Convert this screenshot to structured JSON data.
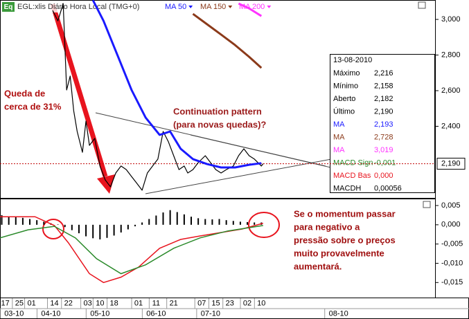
{
  "header": {
    "icon": "Eq",
    "title": "EGL:xlis Diário Hora Local (TMG+0)"
  },
  "info_box": {
    "title": "13-08-2010",
    "rows": [
      {
        "label": "Máximo",
        "value": "2,216",
        "color": "#000000"
      },
      {
        "label": "Mínimo",
        "value": "2,158",
        "color": "#000000"
      },
      {
        "label": "Aberto",
        "value": "2,182",
        "color": "#000000"
      },
      {
        "label": "Último",
        "value": "2,190",
        "color": "#000000"
      },
      {
        "label": "MA",
        "value": "2,193",
        "color": "#1a1aff"
      },
      {
        "label": "MA",
        "value": "2,728",
        "color": "#8b3a1a"
      },
      {
        "label": "MA",
        "value": "3,019",
        "color": "#ff33ff"
      },
      {
        "label": "MACD Sign",
        "value": "-0,001",
        "color": "#2a8a2a"
      },
      {
        "label": "MACD Bas",
        "value": "0,000",
        "color": "#e8141e"
      },
      {
        "label": "MACDH",
        "value": "0,00056",
        "color": "#000000"
      }
    ]
  },
  "chart_data": [
    {
      "type": "line",
      "xlim": [
        13,
        261
      ],
      "ylim": [
        1998,
        3109
      ],
      "yticks": [
        {
          "value": 2400,
          "label": "2,400"
        },
        {
          "value": 2600,
          "label": "2,600"
        },
        {
          "value": 2800,
          "label": "2,800"
        },
        {
          "value": 3000,
          "label": "3,000"
        }
      ],
      "current_price": {
        "value": 2190,
        "label": "2,190"
      },
      "annotations": [
        {
          "lines": [
            "Queda de",
            "cerca de 31%"
          ],
          "color": "#b01010"
        },
        {
          "lines": [
            "Continuation pattern",
            "(para novas quedas)?"
          ],
          "color": "#9b1b1b"
        }
      ],
      "series": [
        {
          "color": "#000000",
          "x": [
            43,
            46,
            49,
            51,
            53,
            55,
            57,
            60,
            62,
            64,
            67,
            70,
            73,
            76,
            79,
            82,
            85,
            88,
            91,
            94,
            97,
            100,
            103,
            106,
            109,
            112,
            115,
            118,
            120,
            123,
            126,
            130,
            133,
            136,
            139,
            142,
            146,
            149,
            152,
            155,
            158,
            162,
            163
          ],
          "values": [
            3050,
            2992,
            3089,
            2604,
            2682,
            2487,
            2371,
            2254,
            2429,
            2293,
            2332,
            2177,
            2099,
            2060,
            2138,
            2177,
            2157,
            2118,
            2080,
            2041,
            2138,
            2177,
            2216,
            2371,
            2313,
            2235,
            2157,
            2177,
            2138,
            2157,
            2196,
            2235,
            2196,
            2157,
            2138,
            2157,
            2177,
            2235,
            2274,
            2235,
            2216,
            2177,
            2190
          ]
        },
        {
          "name": "MA 50",
          "color": "#1a1aff",
          "x": [
            66,
            72,
            80,
            88,
            96,
            104,
            110,
            116,
            123,
            131,
            139,
            147,
            155,
            162
          ],
          "values": [
            3108,
            2992,
            2798,
            2604,
            2449,
            2352,
            2371,
            2274,
            2216,
            2188,
            2169,
            2169,
            2184,
            2193
          ]
        },
        {
          "name": "MA 150",
          "color": "#8b3a1a",
          "x": [
            123,
            131,
            139,
            147,
            155,
            162
          ],
          "values": [
            3031,
            2973,
            2915,
            2856,
            2790,
            2728
          ]
        },
        {
          "name": "MA 200",
          "color": "#ff33ff",
          "x": [
            149,
            155,
            162
          ],
          "values": [
            3089,
            3062,
            3019
          ]
        }
      ]
    },
    {
      "type": "macd",
      "xlim": [
        13,
        261
      ],
      "ylim": [
        -0.0189,
        0.0068
      ],
      "yticks": [
        {
          "value": 0.005,
          "label": "0,005"
        },
        {
          "value": 0,
          "label": "0,000"
        },
        {
          "value": -0.005,
          "label": "-0,005"
        },
        {
          "value": -0.01,
          "label": "-0,010"
        },
        {
          "value": -0.015,
          "label": "-0,015"
        }
      ],
      "xticks": [
        {
          "value": 16,
          "label": "17"
        },
        {
          "value": 24,
          "label": "25"
        },
        {
          "value": 31,
          "label": "01"
        },
        {
          "value": 44,
          "label": "14"
        },
        {
          "value": 52,
          "label": "22"
        },
        {
          "value": 63,
          "label": "03"
        },
        {
          "value": 70,
          "label": "10"
        },
        {
          "value": 78,
          "label": "18"
        },
        {
          "value": 92,
          "label": "01"
        },
        {
          "value": 102,
          "label": "11"
        },
        {
          "value": 112,
          "label": "21"
        },
        {
          "value": 128,
          "label": "07"
        },
        {
          "value": 136,
          "label": "15"
        },
        {
          "value": 144,
          "label": "23"
        },
        {
          "value": 154,
          "label": "02"
        },
        {
          "value": 162,
          "label": "10"
        }
      ],
      "month_ticks": [
        {
          "value": 21,
          "label": "03-10"
        },
        {
          "value": 42,
          "label": "04-10"
        },
        {
          "value": 70,
          "label": "05-10"
        },
        {
          "value": 102,
          "label": "06-10"
        },
        {
          "value": 133,
          "label": "07-10"
        },
        {
          "value": 206,
          "label": "08-10"
        }
      ],
      "annotations": [
        {
          "lines": [
            "Se o momentum passar",
            "para negativo a",
            "pressão sobre o preços",
            "muito provavelmente",
            "aumentará."
          ],
          "color": "#a01010"
        }
      ],
      "histogram": {
        "color": "#000000",
        "x": [
          14,
          18,
          22,
          26,
          30,
          34,
          38,
          42,
          46,
          50,
          54,
          58,
          62,
          66,
          70,
          74,
          78,
          82,
          86,
          90,
          94,
          98,
          102,
          106,
          110,
          114,
          118,
          122,
          126,
          130,
          134,
          138,
          142,
          146,
          150,
          154,
          158,
          162
        ],
        "values": [
          0.0025,
          0.0022,
          0.002,
          0.0018,
          0.0015,
          0.0012,
          0.0008,
          0.0004,
          0.0001,
          -0.0006,
          -0.0014,
          -0.0022,
          -0.003,
          -0.0035,
          -0.0038,
          -0.0034,
          -0.0028,
          -0.002,
          -0.0012,
          -0.0004,
          0.0006,
          0.0015,
          0.0024,
          0.0032,
          0.0038,
          0.0033,
          0.0027,
          0.0021,
          0.0017,
          0.0015,
          0.0014,
          0.0015,
          0.0012,
          0.001,
          0.0008,
          0.0007,
          0.0006,
          0.0006
        ]
      },
      "series": [
        {
          "color": "#e8141e",
          "x": [
            13,
            33,
            44,
            52,
            64,
            72,
            82,
            92,
            104,
            116,
            127,
            139,
            151,
            163
          ],
          "values": [
            0.0021,
            0.0021,
            -0.0002,
            -0.0047,
            -0.0127,
            -0.015,
            -0.0136,
            -0.011,
            -0.0061,
            -0.0038,
            -0.0029,
            -0.002,
            -0.0011,
            0.0004
          ]
        },
        {
          "color": "#2a8a2a",
          "x": [
            13,
            29,
            44,
            56,
            68,
            82,
            96,
            112,
            127,
            143,
            163
          ],
          "values": [
            -0.0034,
            -0.0013,
            -0.0004,
            -0.0034,
            -0.0088,
            -0.0127,
            -0.0104,
            -0.0061,
            -0.0034,
            -0.0016,
            -0.0002
          ]
        }
      ]
    }
  ]
}
